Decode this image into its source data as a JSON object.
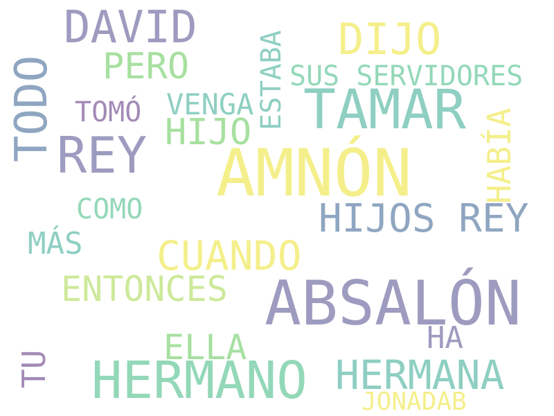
{
  "palette": {
    "lavender": "#9d9bbf",
    "yellow": "#f4ef8a",
    "mint": "#93d8b8",
    "teal": "#8ecfc2",
    "slate": "#8fa6c1",
    "green_yellow": "#cde99a",
    "purple": "#a38bb6",
    "pale_green": "#a7e0a0"
  },
  "words": {
    "david": "DAVID",
    "dijo": "DIJO",
    "todo": "TODO",
    "pero": "PERO",
    "sus_servidores": "SUS SERVIDORES",
    "estaba": "ESTABA",
    "tomo": "TOMÓ",
    "venga": "VENGA",
    "tamar": "TAMAR",
    "hijo": "HIJO",
    "habia": "HABÍA",
    "rey": "REY",
    "amnon": "AMNÓN",
    "como": "COMO",
    "hijos_rey": "HIJOS REY",
    "mas": "MÁS",
    "cuando": "CUANDO",
    "entonces": "ENTONCES",
    "absalon": "ABSALÓN",
    "tu": "TU",
    "ella": "ELLA",
    "ha": "HA",
    "hermano": "HERMANO",
    "hermana": "HERMANA",
    "jonadab": "JONADAB"
  }
}
